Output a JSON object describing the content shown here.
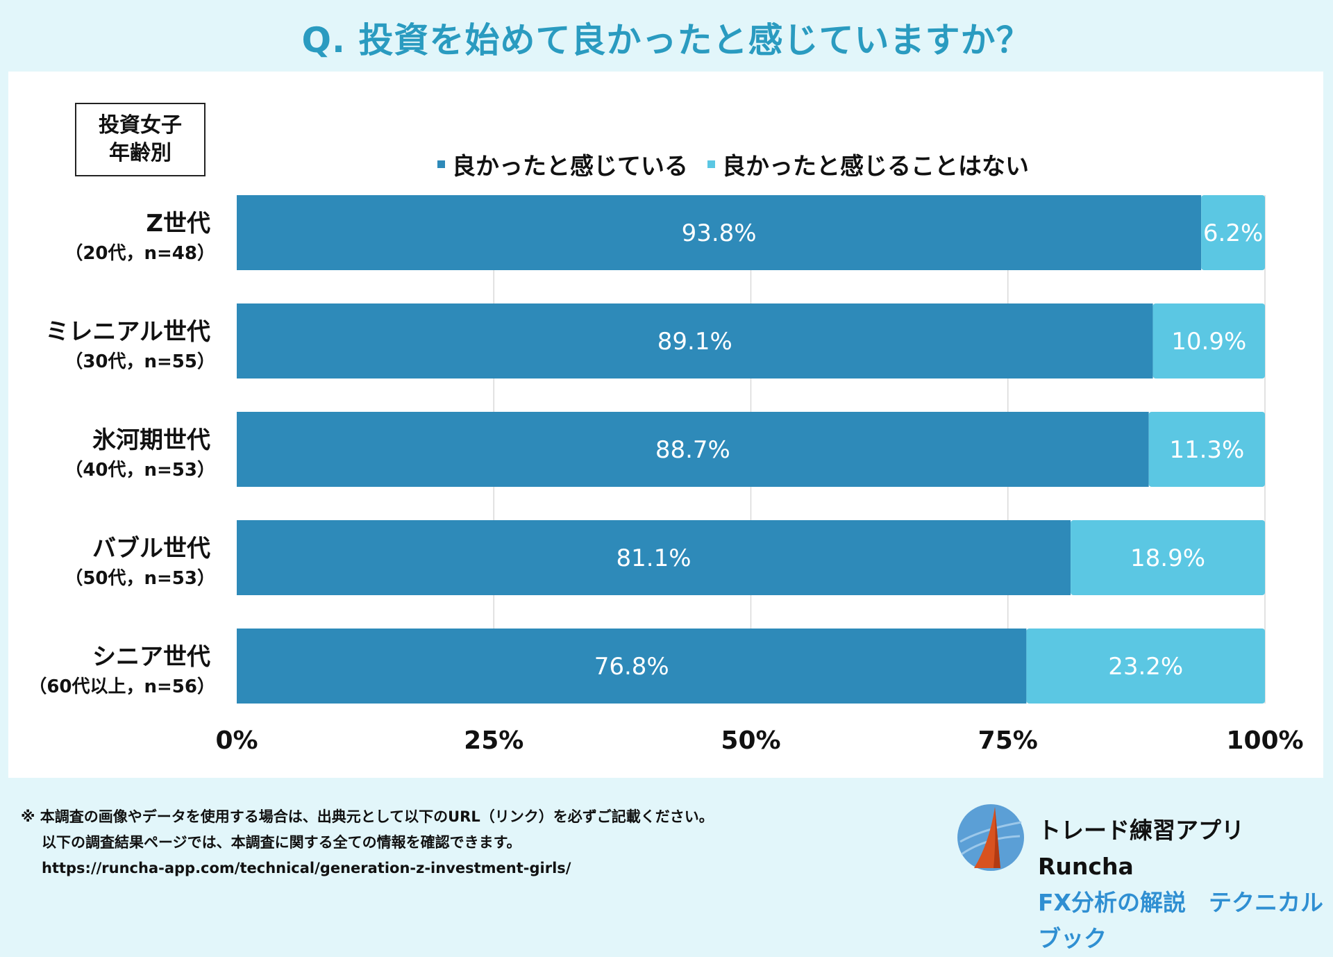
{
  "title": "Q. 投資を始めて良かったと感じていますか？",
  "group_label": [
    "投資女子",
    "年齢別"
  ],
  "colors": {
    "positive": "#2e8ab9",
    "negative": "#5bc7e3",
    "title": "#2a9bc0",
    "brand_sub": "#2f8fd2"
  },
  "chart_data": {
    "type": "bar",
    "orientation": "horizontal",
    "stacked": true,
    "categories": [
      "Z世代",
      "ミレニアル世代",
      "氷河期世代",
      "バブル世代",
      "シニア世代"
    ],
    "category_sublabels": [
      "（20代，n=48）",
      "（30代，n=55）",
      "（40代，n=53）",
      "（50代，n=53）",
      "（60代以上，n=56）"
    ],
    "series": [
      {
        "name": "良かったと感じている",
        "values": [
          93.8,
          89.1,
          88.7,
          81.1,
          76.8
        ],
        "labels": [
          "93.8%",
          "89.1%",
          "88.7%",
          "81.1%",
          "76.8%"
        ]
      },
      {
        "name": "良かったと感じることはない",
        "values": [
          6.2,
          10.9,
          11.3,
          18.9,
          23.2
        ],
        "labels": [
          "6.2%",
          "10.9%",
          "11.3%",
          "18.9%",
          "23.2%"
        ]
      }
    ],
    "xlim": [
      0,
      100
    ],
    "xticks": [
      0,
      25,
      50,
      75,
      100
    ],
    "xtick_labels": [
      "0%",
      "25%",
      "50%",
      "75%",
      "100%"
    ],
    "legend_position": "top",
    "grid": true
  },
  "footer": {
    "line1": "※ 本調査の画像やデータを使用する場合は、出典元として以下のURL（リンク）を必ずご記載ください。",
    "line2": "以下の調査結果ページでは、本調査に関する全ての情報を確認できます。",
    "url": "https://runcha-app.com/technical/generation-z-investment-girls/"
  },
  "brand": {
    "name": "トレード練習アプリ　Runcha",
    "sub": "FX分析の解説　テクニカルブック",
    "logo_icon": "runcha-logo-icon"
  }
}
